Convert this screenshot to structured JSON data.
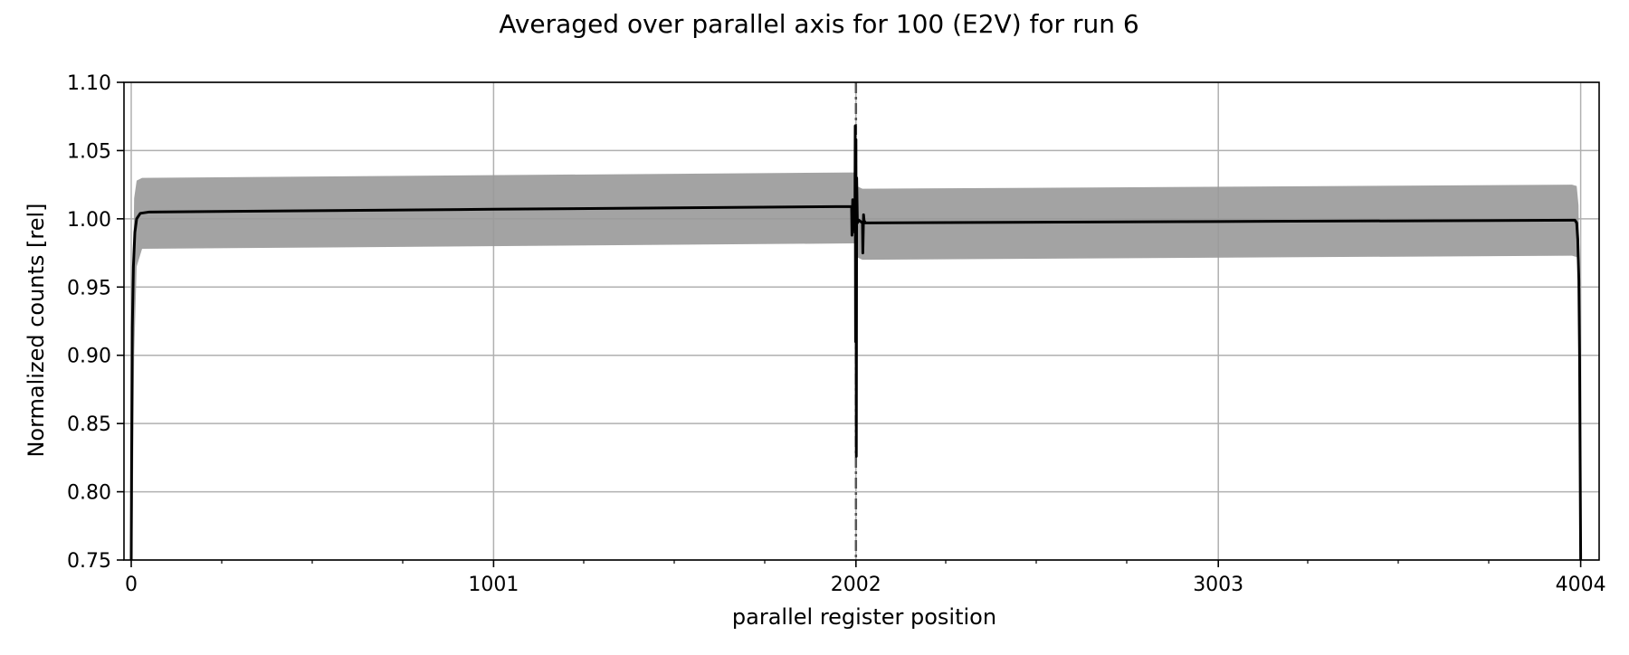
{
  "chart_data": {
    "type": "line",
    "title": "Averaged over parallel axis for 100 (E2V) for run 6",
    "xlabel": "parallel register position",
    "ylabel": "Normalized counts [rel]",
    "xlim": [
      -20,
      4055
    ],
    "ylim": [
      0.75,
      1.1
    ],
    "x_ticks": [
      {
        "value": 0,
        "label": "0"
      },
      {
        "value": 1001,
        "label": "1001"
      },
      {
        "value": 2002,
        "label": "2002"
      },
      {
        "value": 3003,
        "label": "3003"
      },
      {
        "value": 4004,
        "label": "4004"
      }
    ],
    "x_minor_ticks": [
      250,
      500,
      750,
      1250,
      1500,
      1750,
      2250,
      2500,
      2750,
      3250,
      3500,
      3750
    ],
    "y_ticks": [
      {
        "value": 0.75,
        "label": "0.75"
      },
      {
        "value": 0.8,
        "label": "0.80"
      },
      {
        "value": 0.85,
        "label": "0.85"
      },
      {
        "value": 0.9,
        "label": "0.90"
      },
      {
        "value": 0.95,
        "label": "0.95"
      },
      {
        "value": 1.0,
        "label": "1.00"
      },
      {
        "value": 1.05,
        "label": "1.05"
      },
      {
        "value": 1.1,
        "label": "1.10"
      }
    ],
    "grid": true,
    "vertical_marker": {
      "x": 2002,
      "style": "dash-dot",
      "color": "#555555"
    },
    "series": [
      {
        "kind": "band",
        "color": "#999999",
        "x": [
          0,
          3,
          8,
          15,
          30,
          2000,
          2000,
          2002,
          2004,
          2004,
          2020,
          3980,
          3993,
          3998,
          4001,
          4004
        ],
        "upper": [
          0.75,
          0.92,
          1.015,
          1.028,
          1.03,
          1.034,
          1.034,
          1.07,
          1.024,
          1.024,
          1.022,
          1.025,
          1.024,
          1.01,
          0.95,
          0.75
        ],
        "lower": [
          0.75,
          0.75,
          0.9,
          0.965,
          0.978,
          0.982,
          0.982,
          0.8,
          0.972,
          0.972,
          0.97,
          0.973,
          0.972,
          0.96,
          0.9,
          0.75
        ]
      },
      {
        "kind": "line",
        "color": "#000000",
        "x": [
          0,
          1,
          3,
          6,
          10,
          15,
          25,
          50,
          1000,
          1990,
          1991,
          1993,
          1995,
          1997,
          1999,
          2000,
          2001,
          2002,
          2003,
          2004,
          2006,
          2010,
          2020,
          2021,
          2023,
          2025,
          2026,
          2028,
          2030,
          2040,
          3003,
          3980,
          3988,
          3993,
          3996,
          3999,
          4001,
          4003,
          4004
        ],
        "y": [
          0.75,
          0.82,
          0.92,
          0.965,
          0.99,
          1.0,
          1.004,
          1.005,
          1.007,
          1.009,
          0.988,
          1.014,
          1.006,
          1.01,
          0.99,
          1.068,
          0.91,
          1.058,
          0.826,
          1.03,
          0.997,
          0.999,
          0.997,
          0.975,
          1.003,
          0.997,
          0.998,
          0.997,
          0.997,
          0.997,
          0.998,
          0.999,
          0.999,
          0.997,
          0.985,
          0.955,
          0.9,
          0.8,
          0.75
        ]
      }
    ]
  }
}
